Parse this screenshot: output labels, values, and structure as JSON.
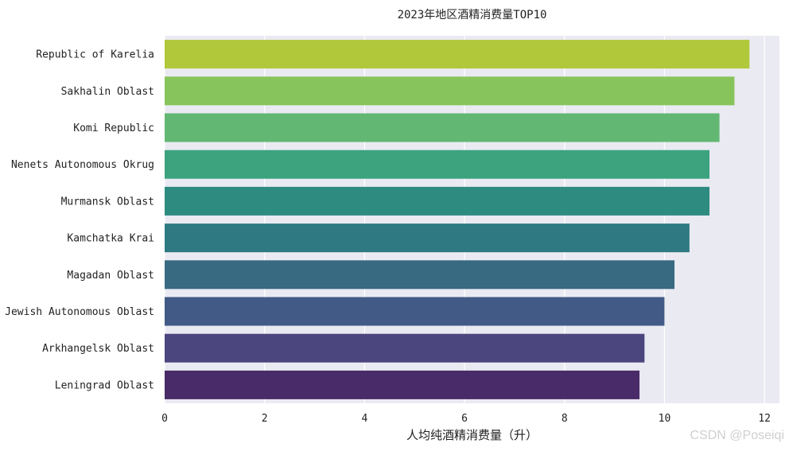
{
  "chart_data": {
    "type": "bar",
    "orientation": "horizontal",
    "title": "2023年地区酒精消费量TOP10",
    "xlabel": "人均纯酒精消费量（升）",
    "ylabel": "",
    "xlim": [
      0,
      12.3
    ],
    "xticks": [
      0,
      2,
      4,
      6,
      8,
      10,
      12
    ],
    "grid": true,
    "background": "#eaeaf2",
    "categories": [
      "Republic of Karelia",
      "Sakhalin Oblast",
      "Komi Republic",
      "Nenets Autonomous Okrug",
      "Murmansk Oblast",
      "Kamchatka Krai",
      "Magadan Oblast",
      "Jewish Autonomous Oblast",
      "Arkhangelsk Oblast",
      "Leningrad Oblast"
    ],
    "values": [
      11.7,
      11.4,
      11.1,
      10.9,
      10.9,
      10.5,
      10.2,
      10.0,
      9.6,
      9.5
    ],
    "colors": [
      "#b0c83a",
      "#88c45c",
      "#62b872",
      "#3ca37e",
      "#2e8b80",
      "#2f7a82",
      "#386a81",
      "#425a86",
      "#4b467d",
      "#482b68"
    ]
  },
  "watermark": "CSDN @Poseiqi"
}
